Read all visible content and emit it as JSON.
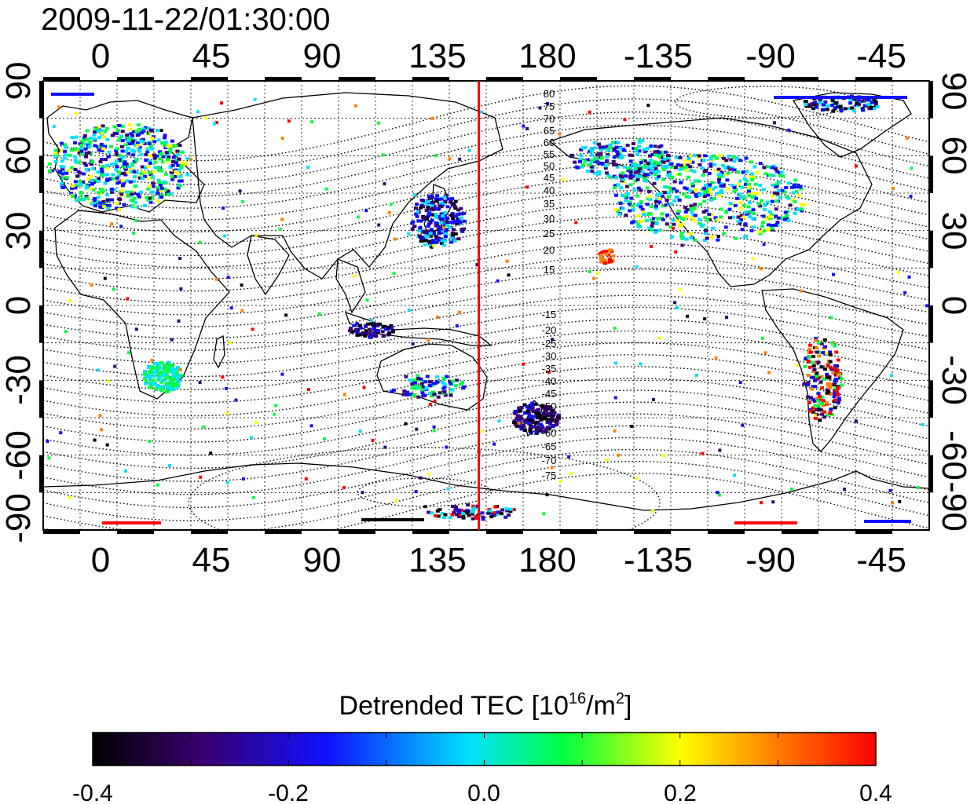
{
  "figure": {
    "timestamp": "2009-11-22/01:30:00",
    "top_axis_labels": [
      "0",
      "45",
      "90",
      "135",
      "180",
      "-135",
      "-90",
      "-45"
    ],
    "bottom_axis_labels": [
      "0",
      "45",
      "90",
      "135",
      "180",
      "-135",
      "-90",
      "-45"
    ],
    "left_axis_labels": [
      "90",
      "60",
      "30",
      "0",
      "-30",
      "-60",
      "-90"
    ],
    "right_axis_labels": [
      "90",
      "60",
      "30",
      "0",
      "-30",
      "-60",
      "-90"
    ],
    "north_contour_labels": [
      "80",
      "75",
      "70",
      "65",
      "60",
      "55",
      "50",
      "45",
      "40",
      "35",
      "30",
      "25",
      "20",
      "15"
    ],
    "south_contour_labels": [
      "-15",
      "-20",
      "-25",
      "-30",
      "-35",
      "-40",
      "-45",
      "-50",
      "-55",
      "-60",
      "-65",
      "-70",
      "-75"
    ],
    "marker_longitude": 157,
    "colorbar": {
      "title_main": "Detrended TEC  [10",
      "title_exp": "16",
      "title_unit": "/m",
      "title_unit_exp": "2",
      "title_close": "]",
      "tick_labels": [
        "-0.4",
        "-0.2",
        "0.0",
        "0.2",
        "0.4"
      ],
      "min": -0.4,
      "max": 0.4
    },
    "colors": {
      "marker_line": "#ff0000",
      "colormap": [
        "#000000",
        "#3a0070",
        "#1010ff",
        "#00e0ff",
        "#00ff40",
        "#ffff00",
        "#ff8000",
        "#ff0000"
      ]
    }
  }
}
